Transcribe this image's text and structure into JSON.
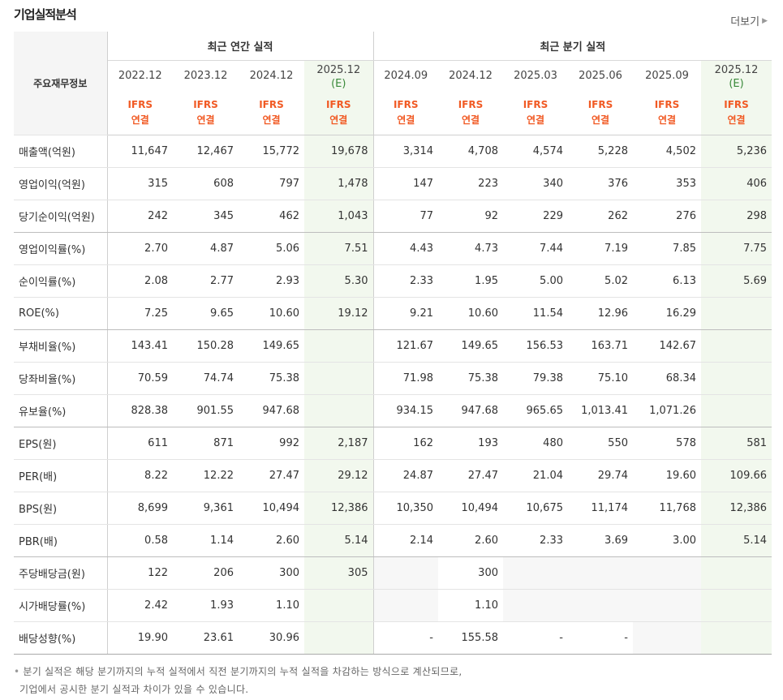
{
  "header": {
    "title": "기업실적분석",
    "more_label": "더보기"
  },
  "table": {
    "corner_label": "주요재무정보",
    "group_annual": "최근 연간 실적",
    "group_quarter": "최근 분기 실적",
    "annual_dates": [
      "2022.12",
      "2023.12",
      "2024.12",
      "2025.12"
    ],
    "quarter_dates": [
      "2024.09",
      "2024.12",
      "2025.03",
      "2025.06",
      "2025.09",
      "2025.12"
    ],
    "estimate_mark": "(E)",
    "ifrs_line1": "IFRS",
    "ifrs_line2": "연결",
    "rows": [
      {
        "label": "매출액(억원)",
        "values": [
          "11,647",
          "12,467",
          "15,772",
          "19,678",
          "3,314",
          "4,708",
          "4,574",
          "5,228",
          "4,502",
          "5,236"
        ]
      },
      {
        "label": "영업이익(억원)",
        "values": [
          "315",
          "608",
          "797",
          "1,478",
          "147",
          "223",
          "340",
          "376",
          "353",
          "406"
        ]
      },
      {
        "label": "당기순이익(억원)",
        "values": [
          "242",
          "345",
          "462",
          "1,043",
          "77",
          "92",
          "229",
          "262",
          "276",
          "298"
        ]
      },
      {
        "label": "영업이익률(%)",
        "values": [
          "2.70",
          "4.87",
          "5.06",
          "7.51",
          "4.43",
          "4.73",
          "7.44",
          "7.19",
          "7.85",
          "7.75"
        ]
      },
      {
        "label": "순이익률(%)",
        "values": [
          "2.08",
          "2.77",
          "2.93",
          "5.30",
          "2.33",
          "1.95",
          "5.00",
          "5.02",
          "6.13",
          "5.69"
        ]
      },
      {
        "label": "ROE(%)",
        "values": [
          "7.25",
          "9.65",
          "10.60",
          "19.12",
          "9.21",
          "10.60",
          "11.54",
          "12.96",
          "16.29",
          ""
        ]
      },
      {
        "label": "부채비율(%)",
        "values": [
          "143.41",
          "150.28",
          "149.65",
          "",
          "121.67",
          "149.65",
          "156.53",
          "163.71",
          "142.67",
          ""
        ]
      },
      {
        "label": "당좌비율(%)",
        "values": [
          "70.59",
          "74.74",
          "75.38",
          "",
          "71.98",
          "75.38",
          "79.38",
          "75.10",
          "68.34",
          ""
        ]
      },
      {
        "label": "유보율(%)",
        "values": [
          "828.38",
          "901.55",
          "947.68",
          "",
          "934.15",
          "947.68",
          "965.65",
          "1,013.41",
          "1,071.26",
          ""
        ]
      },
      {
        "label": "EPS(원)",
        "values": [
          "611",
          "871",
          "992",
          "2,187",
          "162",
          "193",
          "480",
          "550",
          "578",
          "581"
        ]
      },
      {
        "label": "PER(배)",
        "values": [
          "8.22",
          "12.22",
          "27.47",
          "29.12",
          "24.87",
          "27.47",
          "21.04",
          "29.74",
          "19.60",
          "109.66"
        ]
      },
      {
        "label": "BPS(원)",
        "values": [
          "8,699",
          "9,361",
          "10,494",
          "12,386",
          "10,350",
          "10,494",
          "10,675",
          "11,174",
          "11,768",
          "12,386"
        ]
      },
      {
        "label": "PBR(배)",
        "values": [
          "0.58",
          "1.14",
          "2.60",
          "5.14",
          "2.14",
          "2.60",
          "2.33",
          "3.69",
          "3.00",
          "5.14"
        ]
      },
      {
        "label": "주당배당금(원)",
        "values": [
          "122",
          "206",
          "300",
          "305",
          "",
          "300",
          "",
          "",
          "",
          ""
        ]
      },
      {
        "label": "시가배당률(%)",
        "values": [
          "2.42",
          "1.93",
          "1.10",
          "",
          "",
          "1.10",
          "",
          "",
          "",
          ""
        ]
      },
      {
        "label": "배당성향(%)",
        "values": [
          "19.90",
          "23.61",
          "30.96",
          "",
          "-",
          "155.58",
          "-",
          "-",
          "",
          ""
        ]
      }
    ]
  },
  "footnote": {
    "line1": "분기 실적은 해당 분기까지의 누적 실적에서 직전 분기까지의 누적 실적을 차감하는 방식으로 계산되므로,",
    "line2": "기업에서 공시한 분기 실적과 차이가 있을 수 있습니다."
  },
  "colors": {
    "ifrs_orange": "#f15a24",
    "estimate_bg": "#f2f8ee",
    "empty_bg": "#f7f7f7"
  }
}
